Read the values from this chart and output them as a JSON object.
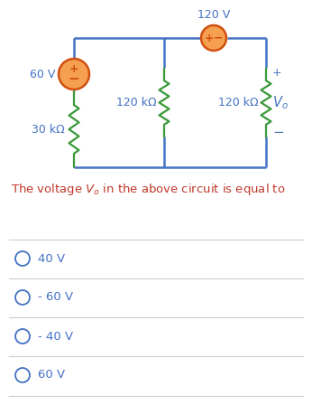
{
  "bg_color": "#ffffff",
  "wire_color": "#4472c4",
  "resistor_color": "#3a9a3a",
  "source_edge_color": "#d05010",
  "source_fill_color": "#f5a050",
  "text_color": "#4472c4",
  "question_color": "#c0392b",
  "option_color": "#4472c4",
  "divider_color": "#cccccc",
  "options": [
    "40 V",
    "- 60 V",
    "- 40 V",
    "60 V"
  ],
  "label_v60": "60 V",
  "label_r30": "30 kΩ",
  "label_r120m": "120 kΩ",
  "label_v120": "120 V",
  "label_r120r": "120 kΩ",
  "label_plus_l": "+",
  "label_minus_l": "−",
  "label_plus_t": "+",
  "label_minus_t": "−",
  "label_plus_r": "+",
  "label_minus_r": "−",
  "label_vo": "$V_o$",
  "question_text": "The voltage $V_o$ in the above circuit is equal to"
}
